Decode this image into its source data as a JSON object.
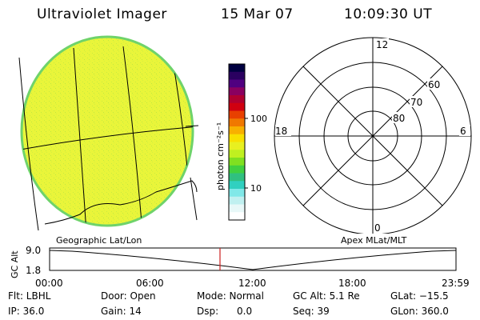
{
  "header": {
    "title": "Ultraviolet Imager",
    "date": "15 Mar 07",
    "time": "10:09:30 UT"
  },
  "colors": {
    "globe_fill": "#e9f53a",
    "globe_edge": "#6fd36a",
    "grid_line": "#000000",
    "time_marker": "#cc2020"
  },
  "colorbar": {
    "label": "photon cm⁻²s⁻¹",
    "ticks": [
      "100",
      "10"
    ],
    "colors": [
      "#000040",
      "#2a0060",
      "#500080",
      "#8a0060",
      "#b00030",
      "#d00010",
      "#e84000",
      "#f07800",
      "#f8b000",
      "#f8e000",
      "#e8f020",
      "#c0f020",
      "#80e020",
      "#40d040",
      "#30c080",
      "#30d0c0",
      "#80e8e8",
      "#c0f0f0",
      "#e8f8f8",
      "#ffffff"
    ]
  },
  "polar": {
    "mlt_labels": {
      "top": "12",
      "left": "18",
      "right": "6",
      "bottom": "0"
    },
    "mlat_labels": [
      "60",
      "70",
      "80"
    ]
  },
  "coord_labels": {
    "left": "Geographic Lat/Lon",
    "right": "Apex MLat/MLT"
  },
  "altitude_plot": {
    "ylabel": "GC Alt",
    "y_ticks": [
      "9.0",
      "1.8"
    ],
    "x_ticks": [
      "00:00",
      "06:00",
      "12:00",
      "18:00",
      "23:59"
    ]
  },
  "status": {
    "row1": [
      {
        "text": "Flt: LBHL"
      },
      {
        "text": "Door: Open"
      },
      {
        "text": "Mode: Normal"
      },
      {
        "text": "GC Alt: 5.1 Re"
      },
      {
        "text": "GLat: −15.5"
      }
    ],
    "row2": [
      {
        "text": "IP: 36.0"
      },
      {
        "text": "Gain: 14"
      },
      {
        "text": "Dsp:      0.0"
      },
      {
        "text": "Seq: 39"
      },
      {
        "text": "GLon: 360.0"
      }
    ]
  }
}
